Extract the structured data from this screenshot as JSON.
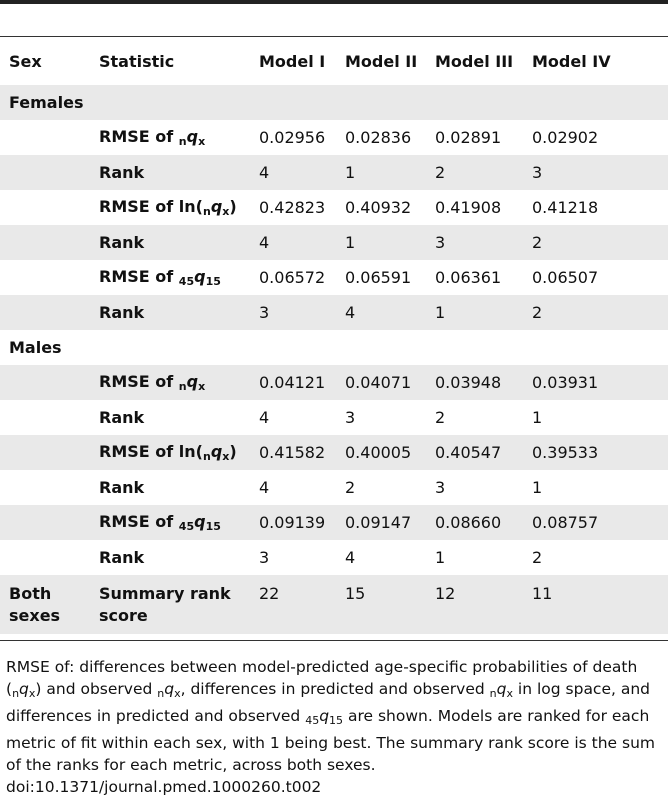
{
  "headers": {
    "sex": "Sex",
    "statistic": "Statistic",
    "model1": "Model I",
    "model2": "Model II",
    "model3": "Model III",
    "model4": "Model IV"
  },
  "sections": {
    "females": "Females",
    "males": "Males"
  },
  "stat_labels": {
    "rmse_of": "RMSE of",
    "rmse_of_ln": "RMSE of ln(",
    "close_paren": ")",
    "rank": "Rank",
    "sub_n": "n",
    "sub_x": "x",
    "sub_45": "45",
    "sub_15": "15",
    "q": "q"
  },
  "females": [
    {
      "values": [
        "0.02956",
        "0.02836",
        "0.02891",
        "0.02902"
      ]
    },
    {
      "values": [
        "4",
        "1",
        "2",
        "3"
      ]
    },
    {
      "values": [
        "0.42823",
        "0.40932",
        "0.41908",
        "0.41218"
      ]
    },
    {
      "values": [
        "4",
        "1",
        "3",
        "2"
      ]
    },
    {
      "values": [
        "0.06572",
        "0.06591",
        "0.06361",
        "0.06507"
      ]
    },
    {
      "values": [
        "3",
        "4",
        "1",
        "2"
      ]
    }
  ],
  "males": [
    {
      "values": [
        "0.04121",
        "0.04071",
        "0.03948",
        "0.03931"
      ]
    },
    {
      "values": [
        "4",
        "3",
        "2",
        "1"
      ]
    },
    {
      "values": [
        "0.41582",
        "0.40005",
        "0.40547",
        "0.39533"
      ]
    },
    {
      "values": [
        "4",
        "2",
        "3",
        "1"
      ]
    },
    {
      "values": [
        "0.09139",
        "0.09147",
        "0.08660",
        "0.08757"
      ]
    },
    {
      "values": [
        "3",
        "4",
        "1",
        "2"
      ]
    }
  ],
  "summary": {
    "sex_line1": "Both",
    "sex_line2": "sexes",
    "stat_line1": "Summary rank",
    "stat_line2": "score",
    "values": [
      "22",
      "15",
      "12",
      "11"
    ]
  },
  "footnote": {
    "p1": "RMSE of: differences between model-predicted age-specific probabilities of death (",
    "p2": ") and observed ",
    "p3": ", differences in predicted and observed ",
    "p4": " in log space, and differences in predicted and observed ",
    "p5": " are shown. Models are ranked for each metric of fit within each sex, with 1 being best. The summary rank score is the sum of the ranks for each metric, across both sexes.",
    "doi": "doi:10.1371/journal.pmed.1000260.t002"
  }
}
